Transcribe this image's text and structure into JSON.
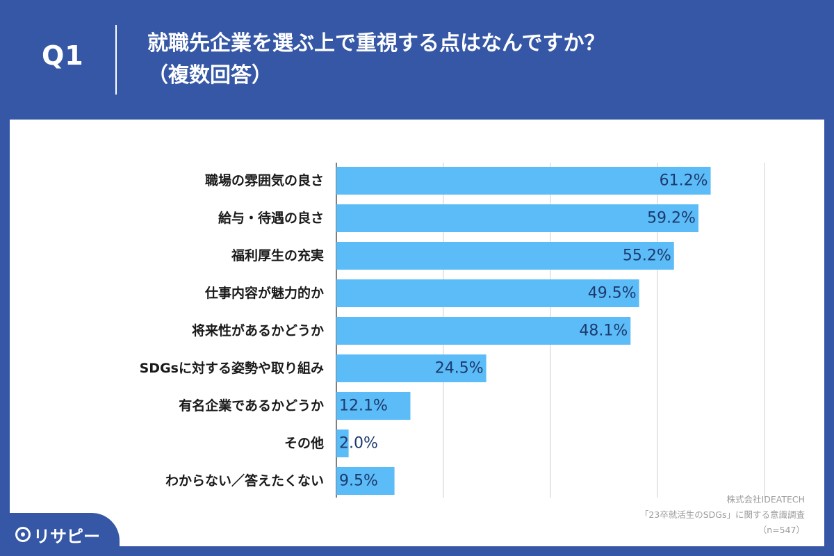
{
  "header": {
    "q_label": "Q1",
    "title_line1": "就職先企業を選ぶ上で重視する点はなんですか？",
    "title_line2": "（複数回答）"
  },
  "chart_data": {
    "type": "bar",
    "orientation": "horizontal",
    "categories": [
      "職場の雰囲気の良さ",
      "給与・待遇の良さ",
      "福利厚生の充実",
      "仕事内容が魅力的か",
      "将来性があるかどうか",
      "SDGsに対する姿勢や取り組み",
      "有名企業であるかどうか",
      "その他",
      "わからない／答えたくない"
    ],
    "values": [
      61.2,
      59.2,
      55.2,
      49.5,
      48.1,
      24.5,
      12.1,
      2.0,
      9.5
    ],
    "value_labels": [
      "61.2%",
      "59.2%",
      "55.2%",
      "49.5%",
      "48.1%",
      "24.5%",
      "12.1%",
      "2.0%",
      "9.5%"
    ],
    "xlim": [
      0,
      70
    ],
    "gridlines": [
      0,
      17.5,
      35,
      52.5,
      70
    ],
    "grid": true,
    "bar_color": "#5bbcf7"
  },
  "source": {
    "line1": "株式会社IDEATECH",
    "line2": "「23卒就活生のSDGs」に関する意識調査",
    "line3": "（n=547）"
  },
  "logo": {
    "text": "リサピー",
    "icon": "pin-icon"
  }
}
